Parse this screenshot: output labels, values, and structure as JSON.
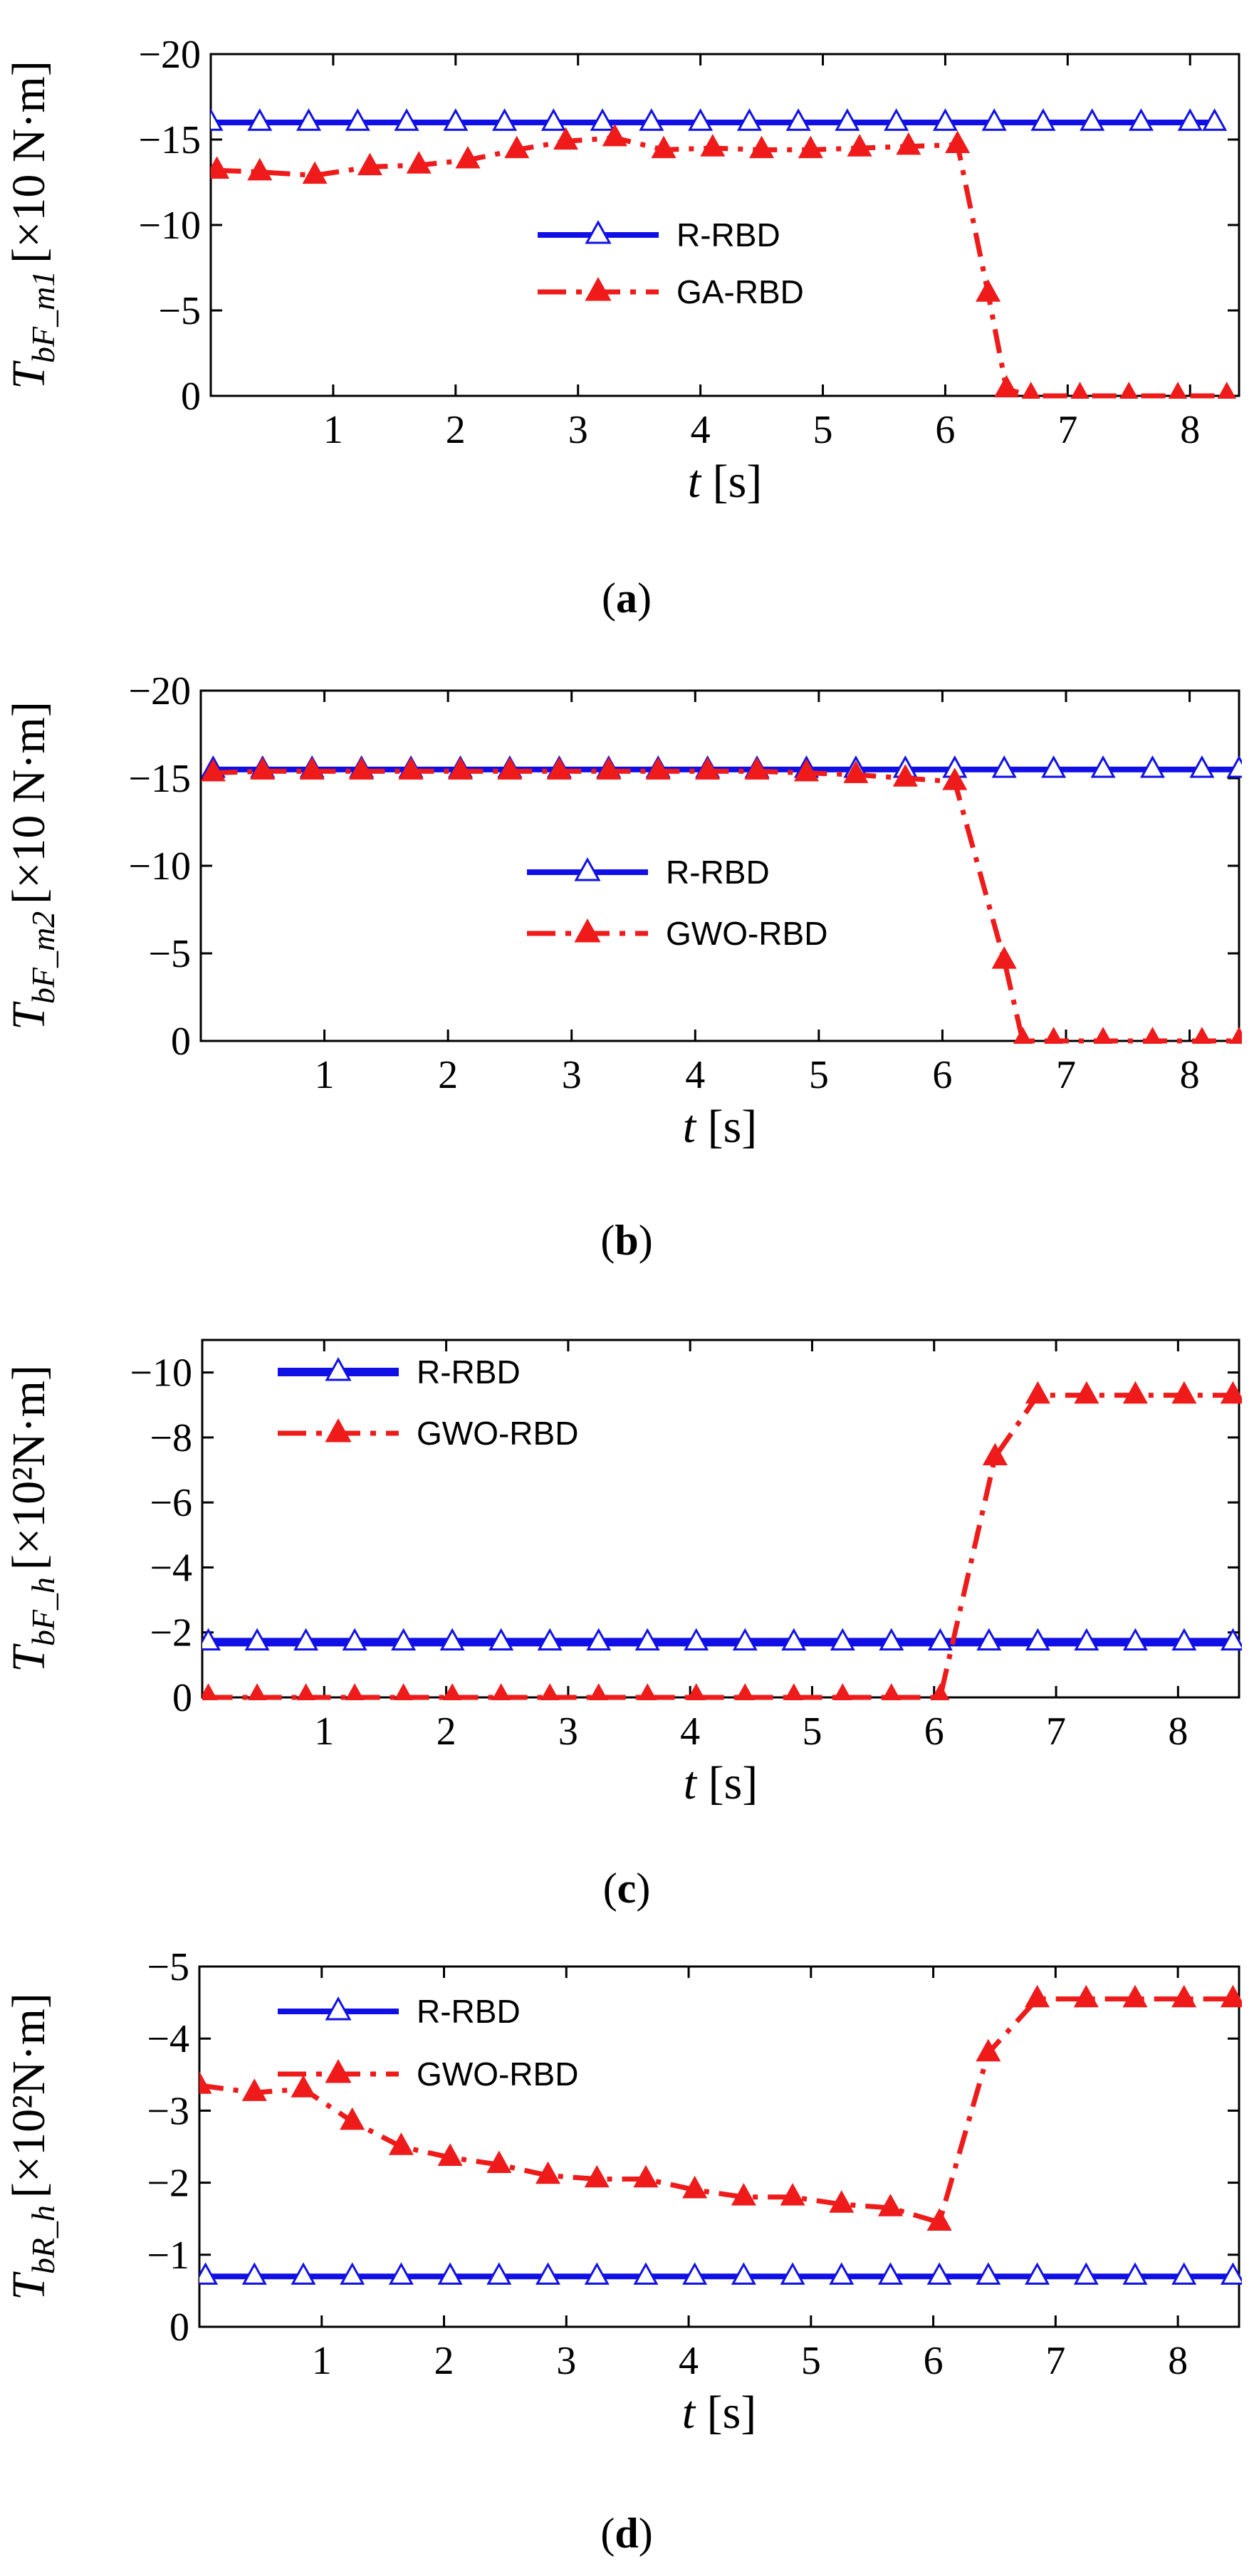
{
  "colors": {
    "rrbd": "#1010e6",
    "opt": "#ef1a1a",
    "axis": "#000000"
  },
  "chart_data": [
    {
      "type": "line",
      "panel": "a",
      "caption_letter": "a",
      "ylabel_main": "T",
      "ylabel_sub": "bF_m1",
      "ylabel_unit": "[×10 N·m]",
      "xlabel_main": "t",
      "xlabel_unit": "[s]",
      "xlim": [
        0,
        8.4
      ],
      "ylim": [
        0,
        -20
      ],
      "xticks": [
        1,
        2,
        3,
        4,
        5,
        6,
        7,
        8
      ],
      "yticks": [
        0,
        -5,
        -10,
        -15,
        -20
      ],
      "ytick_labels": [
        "0",
        "−5",
        "−10",
        "−15",
        "−20"
      ],
      "legend_position": "center",
      "series": [
        {
          "name": "R-RBD",
          "style": "solid",
          "marker": "open-triangle",
          "x": [
            0,
            0.4,
            0.8,
            1.2,
            1.6,
            2.0,
            2.4,
            2.8,
            3.2,
            3.6,
            4.0,
            4.4,
            4.8,
            5.2,
            5.6,
            6.0,
            6.4,
            6.8,
            7.2,
            7.6,
            8.0,
            8.2
          ],
          "y": [
            -16,
            -16,
            -16,
            -16,
            -16,
            -16,
            -16,
            -16,
            -16,
            -16,
            -16,
            -16,
            -16,
            -16,
            -16,
            -16,
            -16,
            -16,
            -16,
            -16,
            -16,
            -16
          ]
        },
        {
          "name": "GA-RBD",
          "style": "dashdot",
          "marker": "filled-triangle",
          "x": [
            0.05,
            0.4,
            0.85,
            1.3,
            1.7,
            2.1,
            2.5,
            2.9,
            3.3,
            3.7,
            4.1,
            4.5,
            4.9,
            5.3,
            5.7,
            6.1,
            6.35,
            6.5,
            6.7,
            7.1,
            7.5,
            7.9,
            8.3
          ],
          "y": [
            -13.2,
            -13.1,
            -12.9,
            -13.4,
            -13.5,
            -13.8,
            -14.4,
            -14.9,
            -15.1,
            -14.4,
            -14.5,
            -14.4,
            -14.4,
            -14.5,
            -14.6,
            -14.7,
            -6,
            -0.4,
            0,
            0,
            0,
            0,
            0
          ]
        }
      ]
    },
    {
      "type": "line",
      "panel": "b",
      "caption_letter": "b",
      "ylabel_main": "T",
      "ylabel_sub": "bF_m2",
      "ylabel_unit": "[×10 N·m]",
      "xlabel_main": "t",
      "xlabel_unit": "[s]",
      "xlim": [
        0,
        8.4
      ],
      "ylim": [
        0,
        -20
      ],
      "xticks": [
        1,
        2,
        3,
        4,
        5,
        6,
        7,
        8
      ],
      "yticks": [
        0,
        -5,
        -10,
        -15,
        -20
      ],
      "ytick_labels": [
        "0",
        "−5",
        "−10",
        "−15",
        "−20"
      ],
      "legend_position": "center",
      "series": [
        {
          "name": "R-RBD",
          "style": "solid",
          "marker": "open-triangle",
          "x": [
            0.1,
            0.5,
            0.9,
            1.3,
            1.7,
            2.1,
            2.5,
            2.9,
            3.3,
            3.7,
            4.1,
            4.5,
            4.9,
            5.3,
            5.7,
            6.1,
            6.5,
            6.9,
            7.3,
            7.7,
            8.1,
            8.4
          ],
          "y": [
            -15.5,
            -15.5,
            -15.5,
            -15.5,
            -15.5,
            -15.5,
            -15.5,
            -15.5,
            -15.5,
            -15.5,
            -15.5,
            -15.5,
            -15.5,
            -15.5,
            -15.5,
            -15.5,
            -15.5,
            -15.5,
            -15.5,
            -15.5,
            -15.5,
            -15.5
          ]
        },
        {
          "name": "GWO-RBD",
          "style": "dashdot",
          "marker": "filled-triangle",
          "x": [
            0.1,
            0.5,
            0.9,
            1.3,
            1.7,
            2.1,
            2.5,
            2.9,
            3.3,
            3.7,
            4.1,
            4.5,
            4.9,
            5.3,
            5.7,
            6.1,
            6.5,
            6.65,
            6.9,
            7.3,
            7.7,
            8.1,
            8.4
          ],
          "y": [
            -15.3,
            -15.4,
            -15.4,
            -15.4,
            -15.4,
            -15.4,
            -15.4,
            -15.4,
            -15.4,
            -15.4,
            -15.4,
            -15.4,
            -15.3,
            -15.2,
            -15.0,
            -14.8,
            -4.6,
            0,
            0,
            0,
            0,
            0,
            0
          ]
        }
      ]
    },
    {
      "type": "line",
      "panel": "c",
      "caption_letter": "c",
      "ylabel_main": "T",
      "ylabel_sub": "bF_h",
      "ylabel_unit": "[×10²N·m]",
      "xlabel_main": "t",
      "xlabel_unit": "[s]",
      "xlim": [
        0,
        8.5
      ],
      "ylim": [
        0,
        -11
      ],
      "xticks": [
        1,
        2,
        3,
        4,
        5,
        6,
        7,
        8
      ],
      "yticks": [
        0,
        -2,
        -4,
        -6,
        -8,
        -10
      ],
      "ytick_labels": [
        "0",
        "−2",
        "−4",
        "−6",
        "−8",
        "−10"
      ],
      "legend_position": "top-left",
      "series": [
        {
          "name": "R-RBD",
          "style": "solid",
          "marker": "open-triangle",
          "x": [
            0.05,
            0.45,
            0.85,
            1.25,
            1.65,
            2.05,
            2.45,
            2.85,
            3.25,
            3.65,
            4.05,
            4.45,
            4.85,
            5.25,
            5.65,
            6.05,
            6.45,
            6.85,
            7.25,
            7.65,
            8.05,
            8.45
          ],
          "y": [
            -1.7,
            -1.7,
            -1.7,
            -1.7,
            -1.7,
            -1.7,
            -1.7,
            -1.7,
            -1.7,
            -1.7,
            -1.7,
            -1.7,
            -1.7,
            -1.7,
            -1.7,
            -1.7,
            -1.7,
            -1.7,
            -1.7,
            -1.7,
            -1.7,
            -1.7
          ]
        },
        {
          "name": "GWO-RBD",
          "style": "dashdot",
          "marker": "filled-triangle",
          "x": [
            0.05,
            0.45,
            0.85,
            1.25,
            1.65,
            2.05,
            2.45,
            2.85,
            3.25,
            3.65,
            4.05,
            4.45,
            4.85,
            5.25,
            5.65,
            6.05,
            6.5,
            6.85,
            7.25,
            7.65,
            8.05,
            8.45
          ],
          "y": [
            0,
            0,
            0,
            0,
            0,
            0,
            0,
            0,
            0,
            0,
            0,
            0,
            0,
            0,
            0,
            0,
            -7.4,
            -9.3,
            -9.3,
            -9.3,
            -9.3,
            -9.3
          ]
        }
      ]
    },
    {
      "type": "line",
      "panel": "d",
      "caption_letter": "d",
      "ylabel_main": "T",
      "ylabel_sub": "bR_h",
      "ylabel_unit": "[×10²N·m]",
      "xlabel_main": "t",
      "xlabel_unit": "[s]",
      "xlim": [
        0,
        8.5
      ],
      "ylim": [
        0,
        -5
      ],
      "xticks": [
        1,
        2,
        3,
        4,
        5,
        6,
        7,
        8
      ],
      "yticks": [
        0,
        -1,
        -2,
        -3,
        -4,
        -5
      ],
      "ytick_labels": [
        "0",
        "−1",
        "−2",
        "−3",
        "−4",
        "−5"
      ],
      "legend_position": "top-left",
      "series": [
        {
          "name": "R-RBD",
          "style": "solid",
          "marker": "open-triangle",
          "x": [
            0.05,
            0.45,
            0.85,
            1.25,
            1.65,
            2.05,
            2.45,
            2.85,
            3.25,
            3.65,
            4.05,
            4.45,
            4.85,
            5.25,
            5.65,
            6.05,
            6.45,
            6.85,
            7.25,
            7.65,
            8.05,
            8.45
          ],
          "y": [
            -0.7,
            -0.7,
            -0.7,
            -0.7,
            -0.7,
            -0.7,
            -0.7,
            -0.7,
            -0.7,
            -0.7,
            -0.7,
            -0.7,
            -0.7,
            -0.7,
            -0.7,
            -0.7,
            -0.7,
            -0.7,
            -0.7,
            -0.7,
            -0.7,
            -0.7
          ]
        },
        {
          "name": "GWO-RBD",
          "style": "dashdot",
          "marker": "filled-triangle",
          "x": [
            0,
            0.45,
            0.85,
            1.25,
            1.65,
            2.05,
            2.45,
            2.85,
            3.25,
            3.65,
            4.05,
            4.45,
            4.85,
            5.25,
            5.65,
            6.05,
            6.45,
            6.85,
            7.25,
            7.65,
            8.05,
            8.45
          ],
          "y": [
            -3.35,
            -3.25,
            -3.3,
            -2.85,
            -2.5,
            -2.35,
            -2.25,
            -2.1,
            -2.05,
            -2.05,
            -1.9,
            -1.8,
            -1.8,
            -1.7,
            -1.65,
            -1.45,
            -3.8,
            -4.55,
            -4.55,
            -4.55,
            -4.55,
            -4.55
          ]
        }
      ]
    }
  ]
}
